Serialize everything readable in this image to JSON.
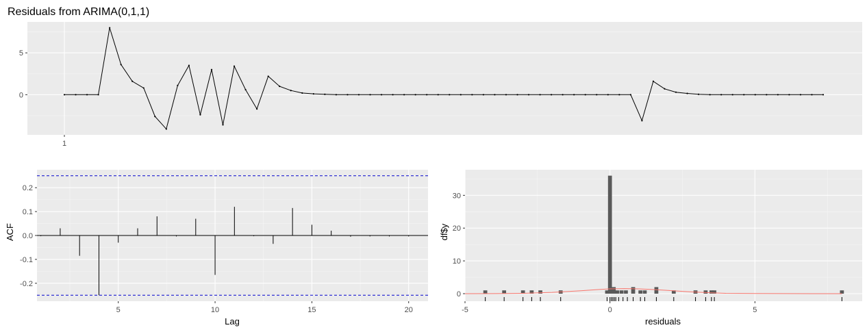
{
  "title": "Residuals from ARIMA(0,1,1)",
  "chart_data": [
    {
      "type": "line",
      "title": "Residuals from ARIMA(0,1,1)",
      "xlabel": "",
      "ylabel": "",
      "x_tick_labels": [
        "1"
      ],
      "y_ticks": [
        0,
        5
      ],
      "ylim": [
        -4.8,
        8.7
      ],
      "y": [
        0,
        0,
        0,
        0,
        8.0,
        3.6,
        1.6,
        0.8,
        -2.6,
        -4.1,
        1.1,
        3.5,
        -2.4,
        3.0,
        -3.6,
        3.4,
        0.6,
        -1.7,
        2.2,
        1.0,
        0.5,
        0.2,
        0.1,
        0.05,
        0,
        0,
        0,
        0,
        0,
        0,
        0,
        0,
        0,
        0,
        0,
        0,
        0,
        0,
        0,
        0,
        0,
        0,
        0,
        0,
        0,
        0,
        0,
        0,
        0,
        0,
        0,
        -3.1,
        1.6,
        0.7,
        0.3,
        0.15,
        0.05,
        0,
        0,
        0,
        0,
        0,
        0,
        0,
        0,
        0,
        0,
        0
      ],
      "grid": true
    },
    {
      "type": "bar",
      "title": "",
      "xlabel": "Lag",
      "ylabel": "ACF",
      "x_ticks": [
        5,
        10,
        15,
        20
      ],
      "y_ticks": [
        -0.2,
        -0.1,
        0.0,
        0.1,
        0.2
      ],
      "y_tick_labels": [
        "-0.2",
        "-0.1",
        "0.0",
        "0.1",
        "0.2"
      ],
      "xlim": [
        0.8,
        21.0
      ],
      "ylim": [
        -0.275,
        0.275
      ],
      "lags": [
        1,
        2,
        3,
        4,
        5,
        6,
        7,
        8,
        9,
        10,
        11,
        12,
        13,
        14,
        15,
        16,
        17,
        18,
        19,
        20
      ],
      "values": [
        -0.003,
        0.03,
        -0.085,
        -0.25,
        -0.03,
        0.03,
        0.08,
        -0.004,
        0.07,
        -0.165,
        0.12,
        -0.003,
        -0.035,
        0.115,
        0.045,
        0.02,
        -0.005,
        -0.004,
        -0.004,
        -0.004
      ],
      "confidence_bounds": [
        -0.25,
        0.25
      ],
      "grid": true
    },
    {
      "type": "bar",
      "title": "",
      "xlabel": "residuals",
      "ylabel": "df$y",
      "x_ticks": [
        -5,
        0,
        5
      ],
      "y_ticks": [
        0,
        10,
        20,
        30
      ],
      "xlim": [
        -5.0,
        8.7
      ],
      "ylim": [
        -2.3,
        37.8
      ],
      "bin_width": 0.135,
      "bins": [
        {
          "x": -4.3,
          "count": 1
        },
        {
          "x": -3.65,
          "count": 1
        },
        {
          "x": -3.0,
          "count": 1
        },
        {
          "x": -2.7,
          "count": 1
        },
        {
          "x": -2.4,
          "count": 1
        },
        {
          "x": -1.7,
          "count": 1
        },
        {
          "x": 0.0,
          "count": 36
        },
        {
          "x": -0.1,
          "count": 1
        },
        {
          "x": 0.13,
          "count": 2
        },
        {
          "x": 0.25,
          "count": 1
        },
        {
          "x": 0.4,
          "count": 1
        },
        {
          "x": 0.55,
          "count": 1
        },
        {
          "x": 0.8,
          "count": 2
        },
        {
          "x": 1.05,
          "count": 1
        },
        {
          "x": 1.2,
          "count": 1
        },
        {
          "x": 1.6,
          "count": 2
        },
        {
          "x": 2.2,
          "count": 1
        },
        {
          "x": 2.95,
          "count": 1
        },
        {
          "x": 3.3,
          "count": 1
        },
        {
          "x": 3.5,
          "count": 1
        },
        {
          "x": 3.6,
          "count": 1
        },
        {
          "x": 8.0,
          "count": 1
        }
      ],
      "density_curve": {
        "x": [
          -5.0,
          -4.0,
          -3.0,
          -2.0,
          -1.0,
          -0.5,
          0.0,
          0.5,
          1.0,
          1.5,
          2.0,
          2.5,
          3.0,
          3.5,
          4.0,
          5.0,
          6.0,
          7.0,
          8.0
        ],
        "y": [
          0.0,
          0.02,
          0.1,
          0.4,
          0.9,
          1.2,
          1.45,
          1.55,
          1.45,
          1.25,
          1.0,
          0.7,
          0.45,
          0.25,
          0.1,
          0.03,
          0.01,
          0.0,
          0.0
        ],
        "color": "#F8766D"
      },
      "rug": [
        -4.3,
        -3.65,
        -3.0,
        -2.7,
        -2.4,
        -1.7,
        -0.1,
        0.0,
        0.05,
        0.1,
        0.15,
        0.2,
        0.3,
        0.45,
        0.6,
        0.8,
        1.05,
        1.2,
        1.6,
        2.2,
        2.95,
        3.3,
        3.5,
        3.6,
        8.0
      ],
      "grid": true
    }
  ],
  "colors": {
    "panel_background": "#EBEBEB",
    "grid_major": "#FFFFFF",
    "grid_minor": "#F5F5F5",
    "series": "#000000",
    "bar_fill": "#595959",
    "confidence": "#0000CC",
    "density": "#F8766D",
    "tick_text": "#4D4D4D"
  }
}
